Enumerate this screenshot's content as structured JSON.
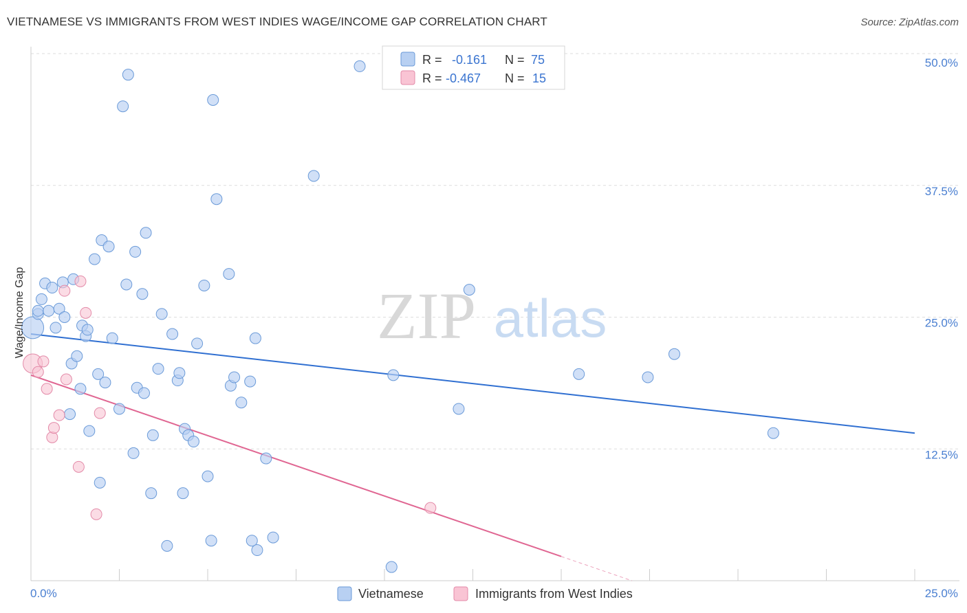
{
  "title": "VIETNAMESE VS IMMIGRANTS FROM WEST INDIES WAGE/INCOME GAP CORRELATION CHART",
  "source": "Source: ZipAtlas.com",
  "watermark": {
    "zip": "ZIP",
    "atlas": "atlas"
  },
  "colors": {
    "blue_fill": "#b8d0f2",
    "blue_stroke": "#6a9ad8",
    "blue_line": "#2f6fd1",
    "pink_fill": "#f9c4d4",
    "pink_stroke": "#e38aa8",
    "pink_line": "#e06692",
    "axis_label": "#4a7fd1",
    "grid": "#dddddd"
  },
  "legend": {
    "rows": [
      {
        "r_label": "R =",
        "r_value": "-0.161",
        "n_label": "N =",
        "n_value": "75"
      },
      {
        "r_label": "R =",
        "r_value": "-0.467",
        "n_label": "N =",
        "n_value": "15"
      }
    ]
  },
  "chart_data": {
    "type": "scatter",
    "title": "VIETNAMESE VS IMMIGRANTS FROM WEST INDIES WAGE/INCOME GAP CORRELATION CHART",
    "xlabel": "",
    "ylabel": "Wage/Income Gap",
    "xlim": [
      0,
      25
    ],
    "ylim": [
      0,
      50
    ],
    "x_tick_labels": [
      "0.0%",
      "25.0%"
    ],
    "y_ticks": [
      12.5,
      25.0,
      37.5,
      50.0
    ],
    "y_tick_labels": [
      "12.5%",
      "25.0%",
      "37.5%",
      "50.0%"
    ],
    "grid": true,
    "legend_position": "top-center",
    "series": [
      {
        "name": "Vietnamese",
        "r": -0.161,
        "n": 75,
        "trend": {
          "x": [
            0,
            25
          ],
          "y": [
            23.4,
            14.0
          ]
        },
        "points": [
          {
            "x": 0.05,
            "y": 24.0,
            "big": true
          },
          {
            "x": 0.2,
            "y": 25.3
          },
          {
            "x": 0.2,
            "y": 25.6
          },
          {
            "x": 0.3,
            "y": 26.7
          },
          {
            "x": 0.4,
            "y": 28.2
          },
          {
            "x": 0.5,
            "y": 25.6
          },
          {
            "x": 0.6,
            "y": 27.8
          },
          {
            "x": 0.7,
            "y": 24.0
          },
          {
            "x": 0.8,
            "y": 25.8
          },
          {
            "x": 0.9,
            "y": 28.3
          },
          {
            "x": 0.95,
            "y": 25.0
          },
          {
            "x": 1.1,
            "y": 15.8
          },
          {
            "x": 1.15,
            "y": 20.6
          },
          {
            "x": 1.2,
            "y": 28.6
          },
          {
            "x": 1.3,
            "y": 21.3
          },
          {
            "x": 1.4,
            "y": 18.2
          },
          {
            "x": 1.45,
            "y": 24.2
          },
          {
            "x": 1.55,
            "y": 23.2
          },
          {
            "x": 1.6,
            "y": 23.8
          },
          {
            "x": 1.65,
            "y": 14.2
          },
          {
            "x": 1.8,
            "y": 30.5
          },
          {
            "x": 1.9,
            "y": 19.6
          },
          {
            "x": 1.95,
            "y": 9.3
          },
          {
            "x": 2.0,
            "y": 32.3
          },
          {
            "x": 2.1,
            "y": 18.8
          },
          {
            "x": 2.2,
            "y": 31.7
          },
          {
            "x": 2.3,
            "y": 23.0
          },
          {
            "x": 2.5,
            "y": 16.3
          },
          {
            "x": 2.6,
            "y": 45.0
          },
          {
            "x": 2.7,
            "y": 28.1
          },
          {
            "x": 2.75,
            "y": 48.0
          },
          {
            "x": 2.9,
            "y": 12.1
          },
          {
            "x": 2.95,
            "y": 31.2
          },
          {
            "x": 3.0,
            "y": 18.3
          },
          {
            "x": 3.15,
            "y": 27.2
          },
          {
            "x": 3.2,
            "y": 17.8
          },
          {
            "x": 3.25,
            "y": 33.0
          },
          {
            "x": 3.4,
            "y": 8.3
          },
          {
            "x": 3.45,
            "y": 13.8
          },
          {
            "x": 3.6,
            "y": 20.1
          },
          {
            "x": 3.7,
            "y": 25.3
          },
          {
            "x": 3.85,
            "y": 3.3
          },
          {
            "x": 4.0,
            "y": 23.4
          },
          {
            "x": 4.15,
            "y": 19.0
          },
          {
            "x": 4.2,
            "y": 19.7
          },
          {
            "x": 4.3,
            "y": 8.3
          },
          {
            "x": 4.35,
            "y": 14.4
          },
          {
            "x": 4.45,
            "y": 13.8
          },
          {
            "x": 4.6,
            "y": 13.2
          },
          {
            "x": 4.7,
            "y": 22.5
          },
          {
            "x": 4.9,
            "y": 28.0
          },
          {
            "x": 5.0,
            "y": 9.9
          },
          {
            "x": 5.1,
            "y": 3.8
          },
          {
            "x": 5.15,
            "y": 45.6
          },
          {
            "x": 5.25,
            "y": 36.2
          },
          {
            "x": 5.6,
            "y": 29.1
          },
          {
            "x": 5.65,
            "y": 18.5
          },
          {
            "x": 5.75,
            "y": 19.3
          },
          {
            "x": 5.95,
            "y": 16.9
          },
          {
            "x": 6.2,
            "y": 18.9
          },
          {
            "x": 6.25,
            "y": 3.8
          },
          {
            "x": 6.35,
            "y": 23.0
          },
          {
            "x": 6.4,
            "y": 2.9
          },
          {
            "x": 6.65,
            "y": 11.6
          },
          {
            "x": 6.85,
            "y": 4.1
          },
          {
            "x": 8.0,
            "y": 38.4
          },
          {
            "x": 9.3,
            "y": 48.8
          },
          {
            "x": 10.2,
            "y": 1.3
          },
          {
            "x": 10.25,
            "y": 19.5
          },
          {
            "x": 12.1,
            "y": 16.3
          },
          {
            "x": 12.4,
            "y": 27.6
          },
          {
            "x": 15.5,
            "y": 19.6
          },
          {
            "x": 17.45,
            "y": 19.3
          },
          {
            "x": 18.2,
            "y": 21.5
          },
          {
            "x": 21.0,
            "y": 14.0
          }
        ]
      },
      {
        "name": "Immigrants from West Indies",
        "r": -0.467,
        "n": 15,
        "trend": {
          "x": [
            0,
            15
          ],
          "y": [
            19.5,
            2.3
          ]
        },
        "trend_dashed_to": {
          "x": 17.0,
          "y": 0.0
        },
        "points": [
          {
            "x": 0.05,
            "y": 20.6,
            "big": true
          },
          {
            "x": 0.2,
            "y": 19.8
          },
          {
            "x": 0.35,
            "y": 20.8
          },
          {
            "x": 0.45,
            "y": 18.2
          },
          {
            "x": 0.6,
            "y": 13.6
          },
          {
            "x": 0.65,
            "y": 14.5
          },
          {
            "x": 0.8,
            "y": 15.7
          },
          {
            "x": 0.95,
            "y": 27.5
          },
          {
            "x": 1.0,
            "y": 19.1
          },
          {
            "x": 1.35,
            "y": 10.8
          },
          {
            "x": 1.4,
            "y": 28.4
          },
          {
            "x": 1.55,
            "y": 25.4
          },
          {
            "x": 1.85,
            "y": 6.3
          },
          {
            "x": 1.95,
            "y": 15.9
          },
          {
            "x": 11.3,
            "y": 6.9
          }
        ]
      }
    ]
  }
}
